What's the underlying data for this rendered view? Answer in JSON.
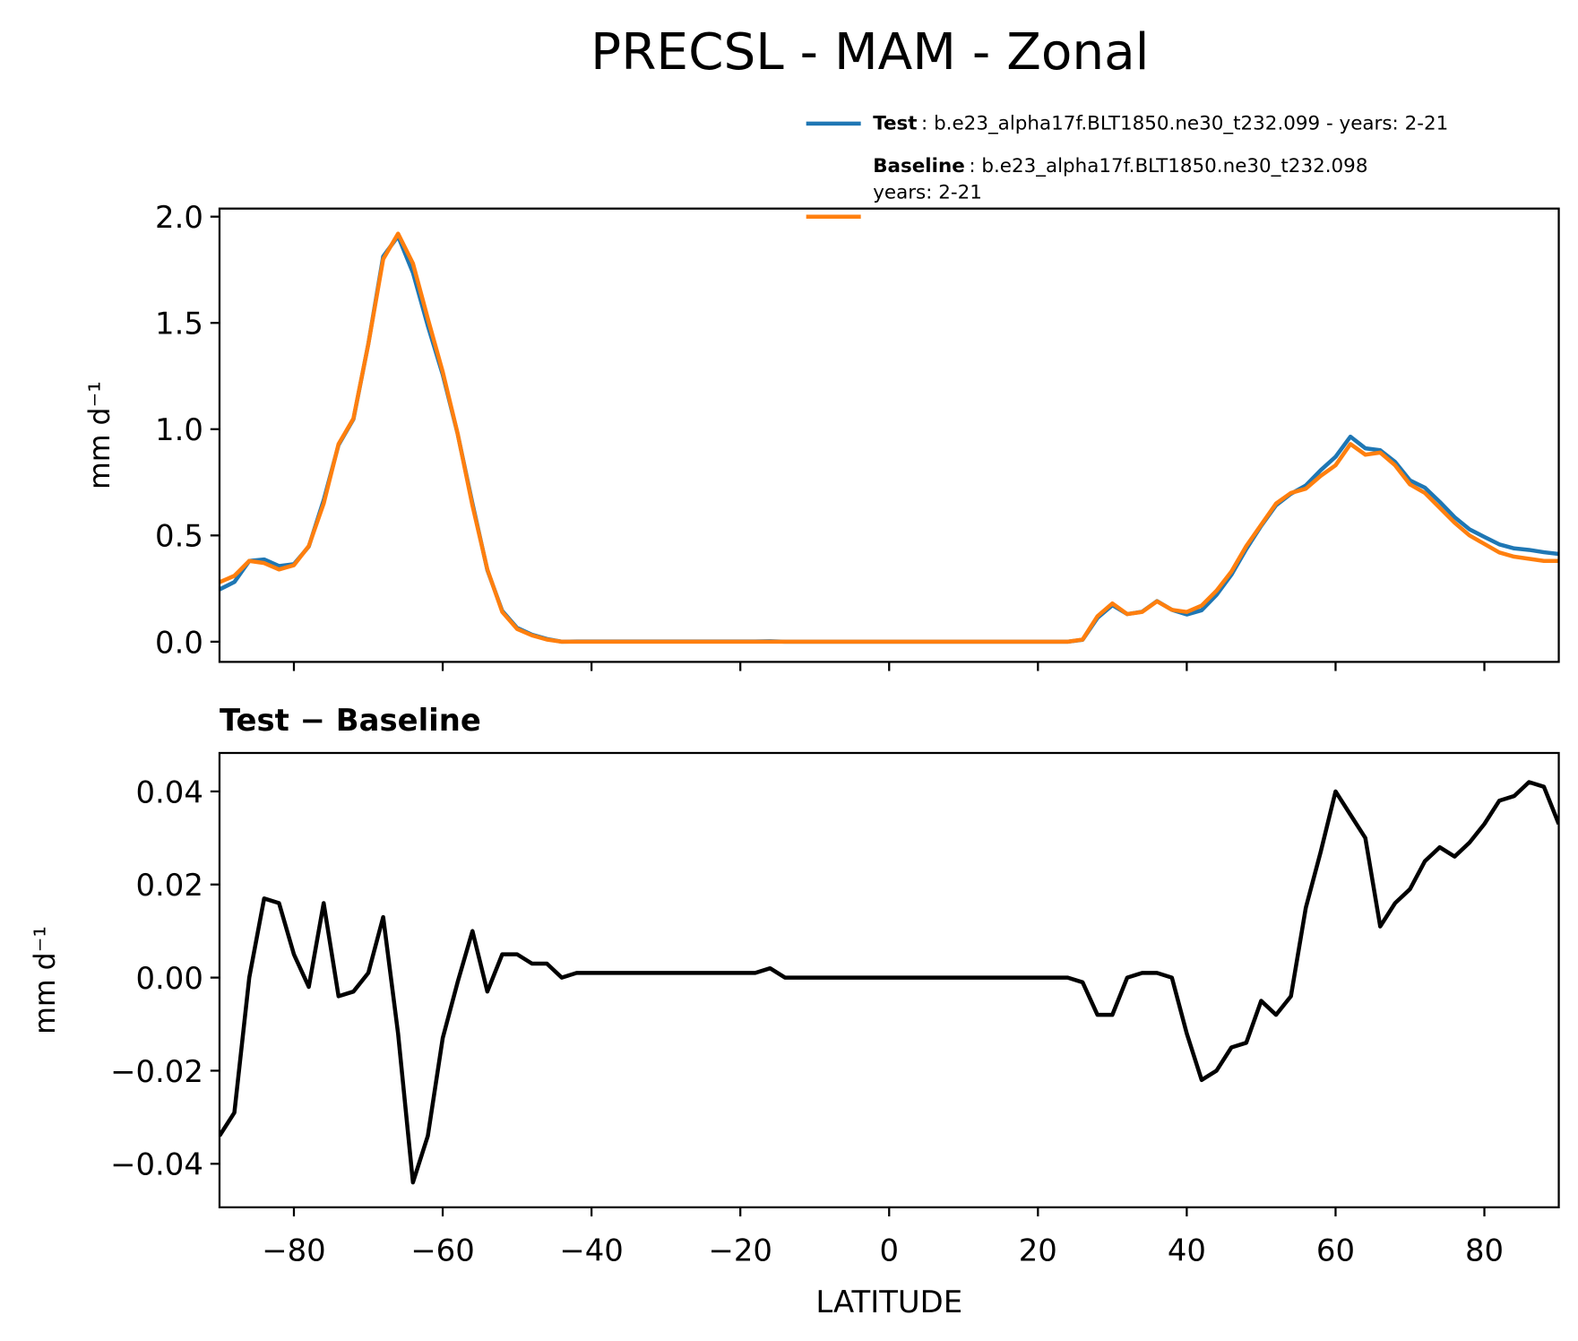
{
  "title": "PRECSL - MAM - Zonal",
  "chart_data": [
    {
      "type": "line",
      "ylabel": "mm d⁻¹",
      "x": [
        -90,
        -88,
        -86,
        -84,
        -82,
        -80,
        -78,
        -76,
        -74,
        -72,
        -70,
        -68,
        -66,
        -64,
        -62,
        -60,
        -58,
        -56,
        -54,
        -52,
        -50,
        -48,
        -46,
        -44,
        -42,
        -40,
        -38,
        -36,
        -34,
        -32,
        -30,
        -28,
        -26,
        -24,
        -22,
        -20,
        -18,
        -16,
        -14,
        -12,
        -10,
        -8,
        -6,
        -4,
        -2,
        0,
        2,
        4,
        6,
        8,
        10,
        12,
        14,
        16,
        18,
        20,
        22,
        24,
        26,
        28,
        30,
        32,
        34,
        36,
        38,
        40,
        42,
        44,
        46,
        48,
        50,
        52,
        54,
        56,
        58,
        60,
        62,
        64,
        66,
        68,
        70,
        72,
        74,
        76,
        78,
        80,
        82,
        84,
        86,
        88,
        90
      ],
      "series": [
        {
          "name": "Test",
          "label_lines": [
            ": b.e23_alpha17f.BLT1850.ne30_t232.099 - years: 2-21"
          ],
          "color": "#1f77b4",
          "values": [
            0.246,
            0.281,
            0.38,
            0.387,
            0.356,
            0.365,
            0.448,
            0.666,
            0.926,
            1.047,
            1.401,
            1.813,
            1.908,
            1.736,
            1.486,
            1.257,
            0.979,
            0.65,
            0.337,
            0.145,
            0.065,
            0.033,
            0.013,
            0,
            0.001,
            0.001,
            0.001,
            0.001,
            0.001,
            0.001,
            0.001,
            0.001,
            0.001,
            0.001,
            0.001,
            0.001,
            0.001,
            0.002,
            0,
            0,
            0,
            0,
            0,
            0,
            0,
            0,
            0,
            0,
            0,
            0,
            0,
            0,
            0,
            0,
            0,
            0,
            0,
            0,
            0.009,
            0.112,
            0.172,
            0.13,
            0.141,
            0.191,
            0.15,
            0.128,
            0.148,
            0.22,
            0.315,
            0.436,
            0.545,
            0.642,
            0.696,
            0.735,
            0.807,
            0.87,
            0.965,
            0.91,
            0.901,
            0.846,
            0.759,
            0.725,
            0.658,
            0.586,
            0.529,
            0.493,
            0.458,
            0.439,
            0.432,
            0.421,
            0.413
          ]
        },
        {
          "name": "Baseline",
          "label_lines": [
            ": b.e23_alpha17f.BLT1850.ne30_t232.098",
            "years: 2-21"
          ],
          "color": "#ff7f0e",
          "values": [
            0.28,
            0.31,
            0.38,
            0.37,
            0.34,
            0.36,
            0.45,
            0.65,
            0.93,
            1.05,
            1.4,
            1.8,
            1.92,
            1.78,
            1.52,
            1.27,
            0.98,
            0.64,
            0.34,
            0.14,
            0.06,
            0.03,
            0.01,
            0,
            0,
            0,
            0,
            0,
            0,
            0,
            0,
            0,
            0,
            0,
            0,
            0,
            0,
            0,
            0,
            0,
            0,
            0,
            0,
            0,
            0,
            0,
            0,
            0,
            0,
            0,
            0,
            0,
            0,
            0,
            0,
            0,
            0,
            0,
            0.01,
            0.12,
            0.18,
            0.13,
            0.14,
            0.19,
            0.15,
            0.14,
            0.17,
            0.24,
            0.33,
            0.45,
            0.55,
            0.65,
            0.7,
            0.72,
            0.78,
            0.83,
            0.93,
            0.88,
            0.89,
            0.83,
            0.74,
            0.7,
            0.63,
            0.56,
            0.5,
            0.46,
            0.42,
            0.4,
            0.39,
            0.38,
            0.38
          ]
        }
      ],
      "xlim": [
        -90,
        90
      ],
      "xticks": [
        -80,
        -60,
        -40,
        -20,
        0,
        20,
        40,
        60,
        80
      ],
      "ylim": [
        -0.095,
        2.038
      ],
      "yticks": [
        {
          "value": 0,
          "label": "0.0"
        },
        {
          "value": 0.5,
          "label": "0.5"
        },
        {
          "value": 1,
          "label": "1.0"
        },
        {
          "value": 1.5,
          "label": "1.5"
        },
        {
          "value": 2,
          "label": "2.0"
        }
      ]
    },
    {
      "type": "line",
      "title": "Test − Baseline",
      "ylabel": "mm d⁻¹",
      "xlabel": "LATITUDE",
      "x": [
        -90,
        -88,
        -86,
        -84,
        -82,
        -80,
        -78,
        -76,
        -74,
        -72,
        -70,
        -68,
        -66,
        -64,
        -62,
        -60,
        -58,
        -56,
        -54,
        -52,
        -50,
        -48,
        -46,
        -44,
        -42,
        -40,
        -38,
        -36,
        -34,
        -32,
        -30,
        -28,
        -26,
        -24,
        -22,
        -20,
        -18,
        -16,
        -14,
        -12,
        -10,
        -8,
        -6,
        -4,
        -2,
        0,
        2,
        4,
        6,
        8,
        10,
        12,
        14,
        16,
        18,
        20,
        22,
        24,
        26,
        28,
        30,
        32,
        34,
        36,
        38,
        40,
        42,
        44,
        46,
        48,
        50,
        52,
        54,
        56,
        58,
        60,
        62,
        64,
        66,
        68,
        70,
        72,
        74,
        76,
        78,
        80,
        82,
        84,
        86,
        88,
        90
      ],
      "series": [
        {
          "color": "#000000",
          "values": [
            -0.034,
            -0.029,
            0.0,
            0.017,
            0.016,
            0.005,
            -0.002,
            0.016,
            -0.004,
            -0.003,
            0.001,
            0.013,
            -0.012,
            -0.044,
            -0.034,
            -0.013,
            -0.001,
            0.01,
            -0.003,
            0.005,
            0.005,
            0.003,
            0.003,
            0,
            0.001,
            0.001,
            0.001,
            0.001,
            0.001,
            0.001,
            0.001,
            0.001,
            0.001,
            0.001,
            0.001,
            0.001,
            0.001,
            0.002,
            0,
            0,
            0,
            0,
            0,
            0,
            0,
            0,
            0,
            0,
            0,
            0,
            0,
            0,
            0,
            0,
            0,
            0,
            0,
            0,
            -0.001,
            -0.008,
            -0.008,
            0.0,
            0.001,
            0.001,
            0.0,
            -0.012,
            -0.022,
            -0.02,
            -0.015,
            -0.014,
            -0.005,
            -0.008,
            -0.004,
            0.015,
            0.027,
            0.04,
            0.035,
            0.03,
            0.011,
            0.016,
            0.019,
            0.025,
            0.028,
            0.026,
            0.029,
            0.033,
            0.038,
            0.039,
            0.042,
            0.041,
            0.033
          ]
        }
      ],
      "xlim": [
        -90,
        90
      ],
      "xticks": [
        {
          "value": -80,
          "label": "−80"
        },
        {
          "value": -60,
          "label": "−60"
        },
        {
          "value": -40,
          "label": "−40"
        },
        {
          "value": -20,
          "label": "−20"
        },
        0,
        20,
        40,
        60,
        80
      ],
      "ylim": [
        -0.04935,
        0.04826
      ],
      "yticks": [
        {
          "value": -0.04,
          "label": "−0.04"
        },
        {
          "value": -0.02,
          "label": "−0.02"
        },
        {
          "value": 0,
          "label": "0.00"
        },
        {
          "value": 0.02,
          "label": "0.02"
        },
        {
          "value": 0.04,
          "label": "0.04"
        }
      ]
    }
  ]
}
